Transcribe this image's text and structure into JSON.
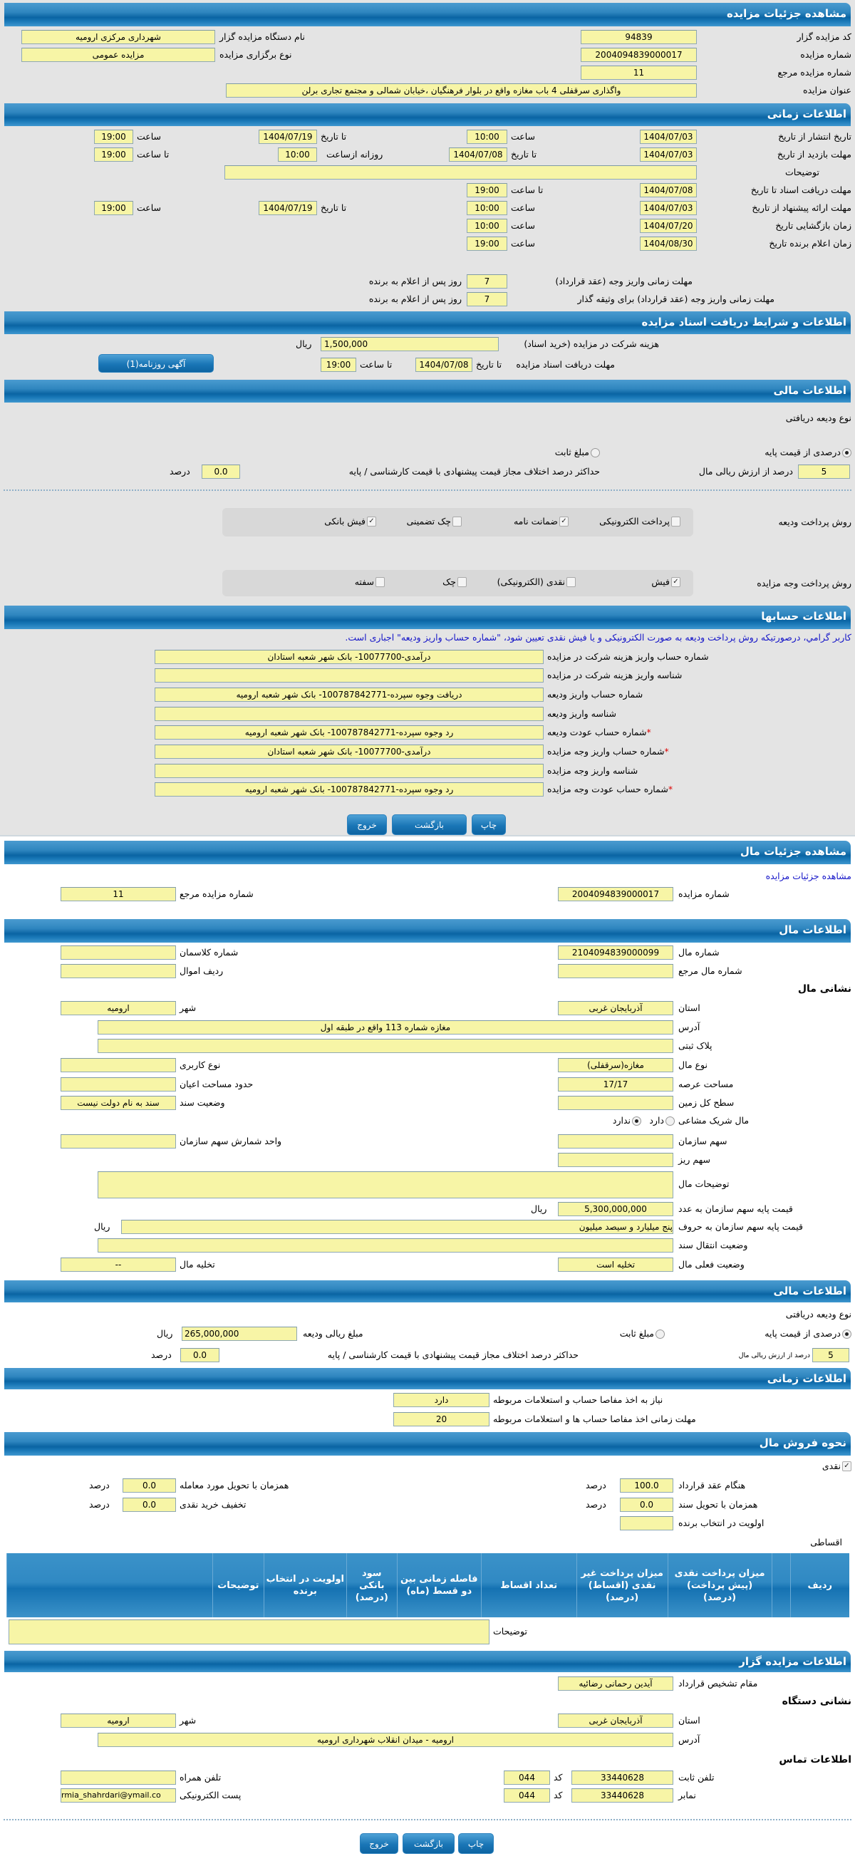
{
  "auction": {
    "title": "مشاهده جزئیات مزایده",
    "code_label": "کد مزایده گزار",
    "code": "94839",
    "org_label": "نام دستگاه مزایده گزار",
    "org": "شهرداری مرکزی ارومیه",
    "number_label": "شماره مزایده",
    "number": "2004094839000017",
    "type_label": "نوع برگزاری مزایده",
    "type": "مزایده عمومی",
    "ref_label": "شماره مزایده مرجع",
    "ref": "11",
    "subject_label": "عنوان مزایده",
    "subject": "واگذاری سرقفلی 4 باب مغازه واقع در بلوار فرهنگیان ،خیابان شمالی و مجتمع تجاری برلن"
  },
  "timing": {
    "title": "اطلاعات زمانی",
    "publish_label": "تاریخ انتشار  از تاریخ",
    "publish_from": "1404/07/03",
    "hour": "ساعت",
    "to_date": "تا تاریخ",
    "to_hour": "تا ساعت",
    "publish_from_time": "10:00",
    "publish_to": "1404/07/19",
    "publish_to_time": "19:00",
    "visit_label": "مهلت بازدید  از تاریخ",
    "visit_from": "1404/07/03",
    "visit_to": "1404/07/08",
    "daily_from": "روزانه ازساعت",
    "visit_from_time": "10:00",
    "visit_to_time": "19:00",
    "desc_label": "توضیحات",
    "desc": "",
    "docs_label": "مهلت دریافت اسناد  تا تاریخ",
    "docs_to": "1404/07/08",
    "docs_time": "19:00",
    "offer_label": "مهلت ارائه پیشنهاد  از تاریخ",
    "offer_from": "1404/07/03",
    "offer_from_time": "10:00",
    "offer_to": "1404/07/19",
    "offer_to_time": "19:00",
    "open_label": "زمان بازگشایی  تاریخ",
    "open_date": "1404/07/20",
    "open_time": "10:00",
    "winner_label": "زمان اعلام برنده  تاریخ",
    "winner_date": "1404/08/30",
    "winner_time": "19:00",
    "pay1_label": "مهلت زمانی واریز وجه (عقد قرارداد)",
    "pay1": "7",
    "days_after": "روز پس از اعلام به برنده",
    "pay2_label": "مهلت زمانی واریز وجه (عقد قرارداد) برای وثیقه گذار",
    "pay2": "7"
  },
  "docs": {
    "title": "اطلاعات و شرایط دریافت اسناد مزایده",
    "fee_label": "هزینه شرکت در مزایده (خرید اسناد)",
    "fee": "1,500,000",
    "rial": "ریال",
    "deadline_label": "مهلت دریافت اسناد مزایده",
    "to_date": "تا تاریخ",
    "date": "1404/07/08",
    "to_hour": "تا ساعت",
    "time": "19:00",
    "ad_button": "آگهی روزنامه(1)"
  },
  "finance": {
    "title": "اطلاعات مالی",
    "deposit_type_label": "نوع ودیعه دریافتی",
    "opt_percent": "درصدی از قیمت پایه",
    "opt_fixed": "مبلغ ثابت",
    "selected": "درصدی از قیمت پایه",
    "percent": "5",
    "percent_label": "درصد از ارزش ریالی مال",
    "max_diff_label": "حداکثر درصد اختلاف مجاز قیمت پیشنهادی با قیمت کارشناسی / پایه",
    "max_diff": "0.0",
    "percent_unit": "درصد",
    "deposit_method_label": "روش پرداخت ودیعه",
    "deposit_methods": [
      {
        "label": "پرداخت الکترونیکی",
        "checked": false
      },
      {
        "label": "ضمانت نامه",
        "checked": true
      },
      {
        "label": "چک تضمینی",
        "checked": false
      },
      {
        "label": "فیش بانکی",
        "checked": true
      }
    ],
    "payment_method_label": "روش پرداخت وجه مزایده",
    "payment_methods": [
      {
        "label": "فیش",
        "checked": true
      },
      {
        "label": "نقدی (الکترونیکی)",
        "checked": false
      },
      {
        "label": "چک",
        "checked": false
      },
      {
        "label": "سفته",
        "checked": false
      }
    ]
  },
  "accounts": {
    "title": "اطلاعات حسابها",
    "note": "کاربر گرامي، درصورتیکه روش پرداخت ودیعه به صورت الکترونیکی و یا فیش نقدی تعیین شود، \"شماره حساب واریز ودیعه\" اجباری است.",
    "rows": [
      {
        "label": "شماره حساب واریز هزینه شرکت در مزایده",
        "value": "درآمدی-10077700- بانک شهر شعبه استادان",
        "required": false
      },
      {
        "label": "شناسه واریز هزینه شرکت در مزایده",
        "value": "",
        "required": false
      },
      {
        "label": "شماره حساب واریز ودیعه",
        "value": "دریافت وجوه سپرده-100787842771- بانک شهر شعبه ارومیه",
        "required": false
      },
      {
        "label": "شناسه واریز ودیعه",
        "value": "",
        "required": false
      },
      {
        "label": "شماره حساب عودت ودیعه",
        "value": "رد وجوه سپرده-100787842771- بانک شهر شعبه ارومیه",
        "required": true
      },
      {
        "label": "شماره حساب واریز وجه مزایده",
        "value": "درآمدی-10077700- بانک شهر شعبه استادان",
        "required": true
      },
      {
        "label": "شناسه واریز وجه مزایده",
        "value": "",
        "required": false
      },
      {
        "label": "شماره حساب عودت وجه مزایده",
        "value": "رد وجوه سپرده-100787842771- بانک شهر شعبه ارومیه",
        "required": true
      }
    ],
    "required_mark": "*"
  },
  "buttons": {
    "print": "چاپ",
    "back": "بازگشت",
    "exit": "خروج"
  },
  "item": {
    "title": "مشاهده جزئیات مال",
    "link": "مشاهده جزئیات مزایده",
    "number_label": "شماره مزایده",
    "number": "2004094839000017",
    "ref_label": "شماره مزایده مرجع",
    "ref": "11",
    "info_title": "اطلاعات مال",
    "item_no_label": "شماره مال",
    "item_no": "2104094839000099",
    "class_label": "شماره کلاسمان",
    "class_no": "",
    "item_ref_label": "شماره مال مرجع",
    "item_ref": "",
    "row_label": "ردیف اموال",
    "row": "",
    "address_title": "نشانی مال",
    "province_label": "استان",
    "province": "آذربایجان غربی",
    "city_label": "شهر",
    "city": "ارومیه",
    "address_label": "آدرس",
    "address": "مغازه شماره 113 واقع در طبقه اول",
    "plaque_label": "پلاک ثبتی",
    "plaque": "",
    "kind_label": "نوع مال",
    "kind": "مغازه(سرقفلی)",
    "usage_label": "نوع کاربری",
    "usage": "",
    "area_label": "مساحت عرصه",
    "area": "17/17",
    "building_label": "حدود مساحت اعیان",
    "building": "",
    "land_label": "سطح کل زمین",
    "land": "",
    "deed_label": "وضعیت سند",
    "deed": "سند به نام دولت نیست",
    "shared_label": "مال شریک مشاعی",
    "yes": "دارد",
    "no": "ندارد",
    "shared": "ندارد",
    "share_label": "سهم سازمان",
    "share": "",
    "share_unit_label": "واحد شمارش سهم سازمان",
    "share_unit": "",
    "fine_share_label": "سهم ریز",
    "fine_share": "",
    "desc_label": "توضیحات مال",
    "desc": "",
    "price_num_label": "قیمت پایه سهم سازمان به عدد",
    "price_num": "5,300,000,000",
    "rial": "ریال",
    "price_words_label": "قیمت پایه سهم سازمان به حروف",
    "price_words": "پنج میلیارد و سیصد میلیون",
    "transfer_label": "وضعیت انتقال سند",
    "transfer": "",
    "status_label": "وضعیت فعلی مال",
    "status": "تخلیه است",
    "evac_label": "تخلیه مال",
    "evac": "--"
  },
  "item_finance": {
    "title": "اطلاعات مالی",
    "deposit_type_label": "نوع ودیعه دریافتی",
    "opt_percent": "درصدی از قیمت پایه",
    "opt_fixed": "مبلغ ثابت",
    "selected": "درصدی از قیمت پایه",
    "amount_label": "مبلغ ریالی ودیعه",
    "amount": "265,000,000",
    "rial": "ریال",
    "percent": "5",
    "percent_label": "درصد از ارزش ریالی مال",
    "max_diff_label": "حداکثر درصد اختلاف مجاز قیمت پیشنهادی با قیمت کارشناسی / پایه",
    "max_diff": "0.0",
    "percent_unit": "درصد"
  },
  "item_timing": {
    "title": "اطلاعات زمانی",
    "clearance_label": "نیاز به اخذ مفاصا حساب و استعلامات مربوطه",
    "clearance": "دارد",
    "clearance_days_label": "مهلت زمانی اخذ مفاصا حساب ها و استعلامات مربوطه",
    "clearance_days": "20"
  },
  "sale": {
    "title": "نحوه فروش مال",
    "cash_label": "نقدی",
    "cash_checked": true,
    "contract_label": "هنگام عقد قرارداد",
    "contract": "100.0",
    "delivery_label": "همزمان با تحویل مورد معامله",
    "delivery": "0.0",
    "deed_label": "همزمان با تحویل سند",
    "deed": "0.0",
    "discount_label": "تخفیف خرید نقدی",
    "discount": "0.0",
    "priority_label": "اولویت در انتخاب برنده",
    "priority": "",
    "percent_unit": "درصد",
    "installment_label": "اقساطی",
    "columns": [
      "ردیف",
      "",
      "میزان پرداخت نقدی (پیش پرداخت) (درصد)",
      "میزان پرداخت غیر نقدی (اقساط) (درصد)",
      "تعداد اقساط",
      "فاصله زمانی بین دو قسط (ماه)",
      "سود بانکی (درصد)",
      "اولویت در انتخاب برنده",
      "توضیحات",
      ""
    ],
    "desc_label": "توضیحات",
    "desc": ""
  },
  "organizer": {
    "title": "اطلاعات مزایده گزار",
    "authority_label": "مقام تشخیص قرارداد",
    "authority": "آیدین رحمانی رضائیه",
    "address_title": "نشانی دستگاه",
    "province_label": "استان",
    "province": "آذربایجان غربی",
    "city_label": "شهر",
    "city": "ارومیه",
    "address_label": "آدرس",
    "address": "ارومیه - میدان انقلاب شهرداری ارومیه",
    "contact_title": "اطلاعات تماس",
    "phone_label": "تلفن ثابت",
    "phone": "33440628",
    "code_label": "کد",
    "phone_code": "044",
    "mobile_label": "تلفن همراه",
    "mobile": "",
    "fax_label": "نمابر",
    "fax": "33440628",
    "fax_code": "044",
    "email_label": "پست الکترونیکی",
    "email": "rmia_shahrdari@ymail.co"
  },
  "colors": {
    "header": "#1a79b8",
    "input": "#f7f5a6",
    "panel": "#e4e4e4",
    "link": "#1515c8",
    "required": "#dd0000"
  }
}
